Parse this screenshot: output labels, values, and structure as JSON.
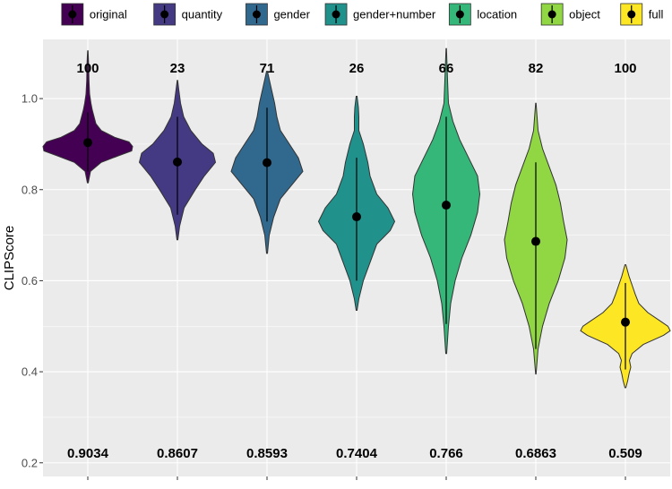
{
  "chart_data": {
    "type": "violin",
    "ylabel": "CLIPScore",
    "xlabel": "",
    "ylim": [
      0.17,
      1.13
    ],
    "yticks": [
      0.2,
      0.4,
      0.6,
      0.8,
      1.0
    ],
    "ytick_labels": [
      "0.2",
      "0.4",
      "0.6",
      "0.8",
      "1.0"
    ],
    "grid": true,
    "legend_position": "top",
    "categories": [
      "original",
      "quantity",
      "gender",
      "gender+number",
      "location",
      "object",
      "full"
    ],
    "series": [
      {
        "name": "original",
        "color": "#440154",
        "count": "100",
        "mean": 0.9034,
        "mean_label": "0.9034",
        "min": 0.815,
        "max": 1.105,
        "ci": [
          0.84,
          0.97
        ],
        "density": [
          [
            0.815,
            0.01
          ],
          [
            0.84,
            0.06
          ],
          [
            0.86,
            0.3
          ],
          [
            0.875,
            0.7
          ],
          [
            0.885,
            0.98
          ],
          [
            0.895,
            1.0
          ],
          [
            0.905,
            0.92
          ],
          [
            0.915,
            0.6
          ],
          [
            0.93,
            0.3
          ],
          [
            0.945,
            0.18
          ],
          [
            0.96,
            0.14
          ],
          [
            0.975,
            0.1
          ],
          [
            0.99,
            0.07
          ],
          [
            1.01,
            0.04
          ],
          [
            1.04,
            0.025
          ],
          [
            1.07,
            0.02
          ],
          [
            1.09,
            0.012
          ],
          [
            1.105,
            0.005
          ]
        ]
      },
      {
        "name": "quantity",
        "color": "#443983",
        "count": "23",
        "mean": 0.8607,
        "mean_label": "0.8607",
        "min": 0.69,
        "max": 1.04,
        "ci": [
          0.745,
          0.96
        ],
        "density": [
          [
            0.69,
            0.01
          ],
          [
            0.72,
            0.05
          ],
          [
            0.76,
            0.15
          ],
          [
            0.8,
            0.4
          ],
          [
            0.83,
            0.6
          ],
          [
            0.86,
            0.85
          ],
          [
            0.88,
            0.8
          ],
          [
            0.9,
            0.55
          ],
          [
            0.93,
            0.3
          ],
          [
            0.96,
            0.14
          ],
          [
            0.99,
            0.07
          ],
          [
            1.02,
            0.03
          ],
          [
            1.04,
            0.005
          ]
        ]
      },
      {
        "name": "gender",
        "color": "#31688e",
        "count": "71",
        "mean": 0.8593,
        "mean_label": "0.8593",
        "min": 0.66,
        "max": 1.06,
        "ci": [
          0.73,
          0.98
        ],
        "density": [
          [
            0.66,
            0.01
          ],
          [
            0.7,
            0.05
          ],
          [
            0.74,
            0.15
          ],
          [
            0.78,
            0.3
          ],
          [
            0.81,
            0.55
          ],
          [
            0.84,
            0.8
          ],
          [
            0.87,
            0.7
          ],
          [
            0.9,
            0.5
          ],
          [
            0.93,
            0.3
          ],
          [
            0.96,
            0.22
          ],
          [
            0.99,
            0.17
          ],
          [
            1.02,
            0.1
          ],
          [
            1.06,
            0.01
          ]
        ]
      },
      {
        "name": "gender+number",
        "color": "#21918c",
        "count": "26",
        "mean": 0.7404,
        "mean_label": "0.7404",
        "min": 0.535,
        "max": 1.005,
        "ci": [
          0.6,
          0.87
        ],
        "density": [
          [
            0.535,
            0.01
          ],
          [
            0.56,
            0.05
          ],
          [
            0.6,
            0.15
          ],
          [
            0.64,
            0.3
          ],
          [
            0.68,
            0.45
          ],
          [
            0.71,
            0.75
          ],
          [
            0.73,
            0.85
          ],
          [
            0.76,
            0.7
          ],
          [
            0.79,
            0.45
          ],
          [
            0.83,
            0.3
          ],
          [
            0.86,
            0.25
          ],
          [
            0.9,
            0.15
          ],
          [
            0.93,
            0.05
          ],
          [
            0.96,
            0.05
          ],
          [
            0.98,
            0.04
          ],
          [
            1.005,
            0.01
          ]
        ]
      },
      {
        "name": "location",
        "color": "#35b779",
        "count": "66",
        "mean": 0.766,
        "mean_label": "0.766",
        "min": 0.44,
        "max": 1.11,
        "ci": [
          0.505,
          0.96
        ],
        "density": [
          [
            0.44,
            0.01
          ],
          [
            0.5,
            0.05
          ],
          [
            0.55,
            0.1
          ],
          [
            0.6,
            0.2
          ],
          [
            0.65,
            0.35
          ],
          [
            0.7,
            0.55
          ],
          [
            0.75,
            0.7
          ],
          [
            0.79,
            0.75
          ],
          [
            0.83,
            0.7
          ],
          [
            0.87,
            0.5
          ],
          [
            0.91,
            0.3
          ],
          [
            0.95,
            0.15
          ],
          [
            0.99,
            0.05
          ],
          [
            1.04,
            0.03
          ],
          [
            1.11,
            0.005
          ]
        ]
      },
      {
        "name": "object",
        "color": "#90d743",
        "count": "82",
        "mean": 0.6863,
        "mean_label": "0.6863",
        "min": 0.395,
        "max": 0.99,
        "ci": [
          0.45,
          0.86
        ],
        "density": [
          [
            0.395,
            0.005
          ],
          [
            0.45,
            0.05
          ],
          [
            0.5,
            0.15
          ],
          [
            0.55,
            0.3
          ],
          [
            0.6,
            0.5
          ],
          [
            0.65,
            0.65
          ],
          [
            0.69,
            0.7
          ],
          [
            0.73,
            0.62
          ],
          [
            0.77,
            0.55
          ],
          [
            0.81,
            0.45
          ],
          [
            0.85,
            0.3
          ],
          [
            0.89,
            0.15
          ],
          [
            0.93,
            0.05
          ],
          [
            0.99,
            0.005
          ]
        ]
      },
      {
        "name": "full",
        "color": "#fde725",
        "count": "100",
        "mean": 0.509,
        "mean_label": "0.509",
        "min": 0.365,
        "max": 0.635,
        "ci": [
          0.405,
          0.595
        ],
        "density": [
          [
            0.365,
            0.01
          ],
          [
            0.38,
            0.05
          ],
          [
            0.395,
            0.08
          ],
          [
            0.41,
            0.12
          ],
          [
            0.425,
            0.09
          ],
          [
            0.44,
            0.15
          ],
          [
            0.46,
            0.4
          ],
          [
            0.48,
            0.85
          ],
          [
            0.49,
            1.0
          ],
          [
            0.5,
            0.95
          ],
          [
            0.51,
            0.8
          ],
          [
            0.53,
            0.5
          ],
          [
            0.55,
            0.3
          ],
          [
            0.57,
            0.22
          ],
          [
            0.59,
            0.15
          ],
          [
            0.61,
            0.08
          ],
          [
            0.635,
            0.01
          ]
        ]
      }
    ]
  }
}
